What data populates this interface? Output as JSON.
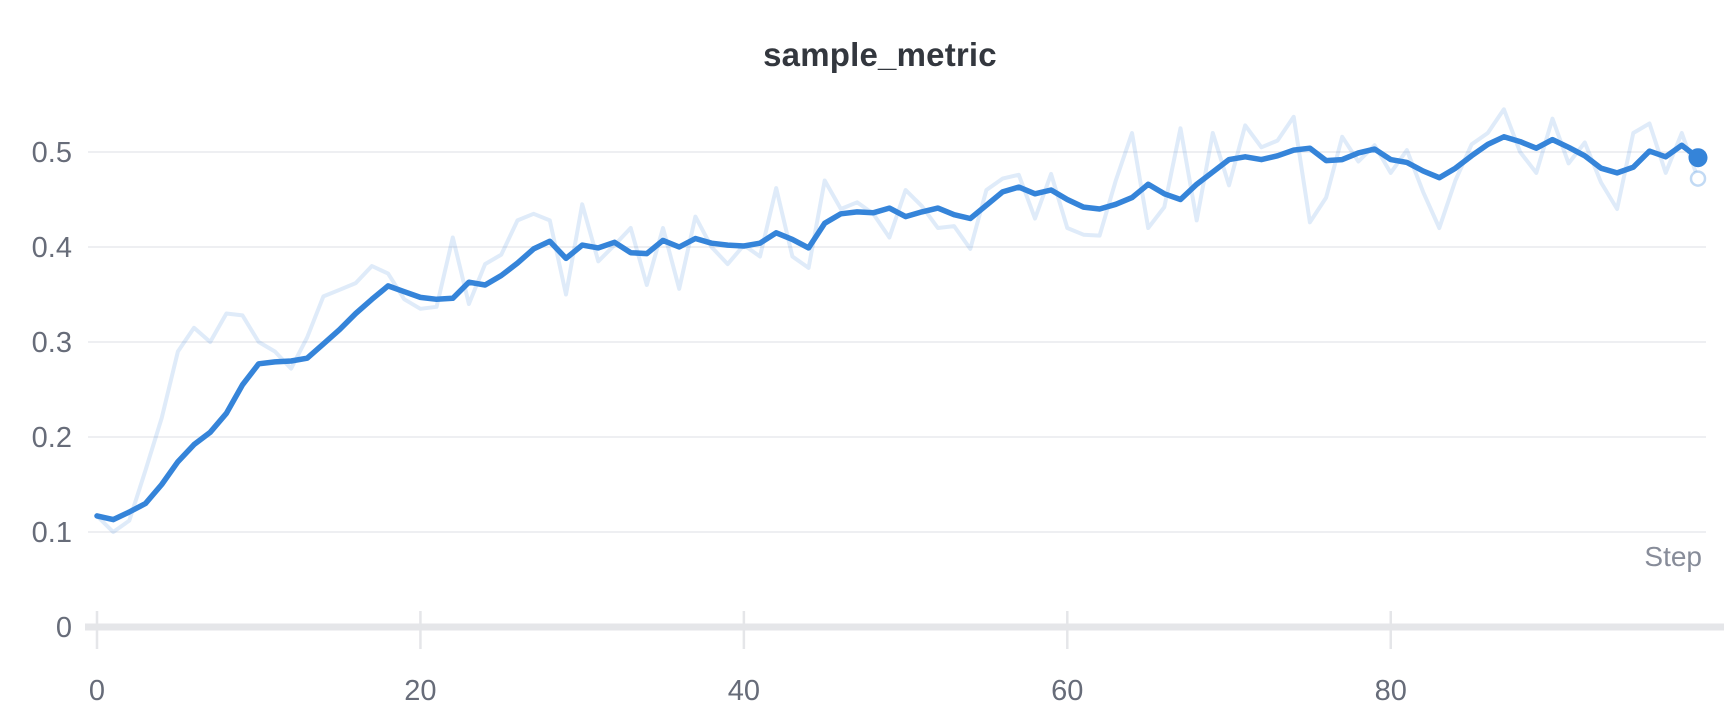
{
  "chart": {
    "title": "sample_metric",
    "xlabel": "Step"
  },
  "colors": {
    "series_blue": "#3584d9",
    "raw_line_opacity": 0.16,
    "gridline": "#e9eaed",
    "axis_band": "#e5e6e9",
    "tick_label": "#676c79",
    "axis_title": "#878c99",
    "title_text": "#33373e",
    "background": "#ffffff"
  },
  "chart_data": {
    "type": "line",
    "title": "sample_metric",
    "xlabel": "Step",
    "ylabel": "",
    "grid": "horizontal",
    "legend": "none",
    "xlim": [
      0,
      99
    ],
    "ylim": [
      0,
      0.56
    ],
    "xticks": [
      0,
      20,
      40,
      60,
      80
    ],
    "yticks": [
      0,
      0.1,
      0.2,
      0.3,
      0.4,
      0.5
    ],
    "x": [
      0,
      1,
      2,
      3,
      4,
      5,
      6,
      7,
      8,
      9,
      10,
      11,
      12,
      13,
      14,
      15,
      16,
      17,
      18,
      19,
      20,
      21,
      22,
      23,
      24,
      25,
      26,
      27,
      28,
      29,
      30,
      31,
      32,
      33,
      34,
      35,
      36,
      37,
      38,
      39,
      40,
      41,
      42,
      43,
      44,
      45,
      46,
      47,
      48,
      49,
      50,
      51,
      52,
      53,
      54,
      55,
      56,
      57,
      58,
      59,
      60,
      61,
      62,
      63,
      64,
      65,
      66,
      67,
      68,
      69,
      70,
      71,
      72,
      73,
      74,
      75,
      76,
      77,
      78,
      79,
      80,
      81,
      82,
      83,
      84,
      85,
      86,
      87,
      88,
      89,
      90,
      91,
      92,
      93,
      94,
      95,
      96,
      97,
      98,
      99
    ],
    "series": [
      {
        "name": "raw",
        "role": "original-unsmoothed",
        "end_marker": "hollow-dot",
        "values": [
          0.117,
          0.1,
          0.112,
          0.165,
          0.22,
          0.29,
          0.315,
          0.3,
          0.33,
          0.328,
          0.3,
          0.29,
          0.272,
          0.305,
          0.348,
          0.355,
          0.362,
          0.38,
          0.372,
          0.345,
          0.335,
          0.337,
          0.41,
          0.34,
          0.382,
          0.392,
          0.428,
          0.435,
          0.428,
          0.35,
          0.445,
          0.385,
          0.402,
          0.42,
          0.36,
          0.42,
          0.356,
          0.432,
          0.4,
          0.382,
          0.402,
          0.39,
          0.462,
          0.39,
          0.378,
          0.47,
          0.44,
          0.447,
          0.435,
          0.41,
          0.46,
          0.443,
          0.42,
          0.422,
          0.398,
          0.46,
          0.472,
          0.476,
          0.43,
          0.477,
          0.42,
          0.413,
          0.412,
          0.47,
          0.52,
          0.42,
          0.442,
          0.525,
          0.428,
          0.52,
          0.465,
          0.528,
          0.505,
          0.512,
          0.537,
          0.426,
          0.452,
          0.516,
          0.49,
          0.507,
          0.478,
          0.502,
          0.458,
          0.42,
          0.47,
          0.508,
          0.52,
          0.545,
          0.5,
          0.478,
          0.535,
          0.488,
          0.51,
          0.468,
          0.44,
          0.52,
          0.53,
          0.478,
          0.52,
          0.472
        ]
      },
      {
        "name": "smoothed",
        "role": "smoothed-main",
        "end_marker": "solid-dot",
        "values": [
          0.117,
          0.113,
          0.121,
          0.13,
          0.15,
          0.174,
          0.192,
          0.205,
          0.225,
          0.255,
          0.277,
          0.279,
          0.28,
          0.283,
          0.298,
          0.313,
          0.33,
          0.345,
          0.359,
          0.353,
          0.347,
          0.345,
          0.346,
          0.363,
          0.36,
          0.37,
          0.383,
          0.398,
          0.406,
          0.388,
          0.402,
          0.399,
          0.405,
          0.394,
          0.393,
          0.407,
          0.4,
          0.409,
          0.404,
          0.402,
          0.401,
          0.404,
          0.415,
          0.408,
          0.399,
          0.425,
          0.435,
          0.437,
          0.436,
          0.441,
          0.432,
          0.437,
          0.441,
          0.434,
          0.43,
          0.444,
          0.458,
          0.463,
          0.456,
          0.46,
          0.45,
          0.442,
          0.44,
          0.445,
          0.452,
          0.466,
          0.456,
          0.45,
          0.466,
          0.479,
          0.492,
          0.495,
          0.492,
          0.496,
          0.502,
          0.504,
          0.491,
          0.492,
          0.499,
          0.503,
          0.492,
          0.489,
          0.48,
          0.473,
          0.483,
          0.496,
          0.508,
          0.516,
          0.511,
          0.504,
          0.513,
          0.505,
          0.496,
          0.483,
          0.478,
          0.484,
          0.501,
          0.495,
          0.507,
          0.494
        ]
      }
    ]
  }
}
